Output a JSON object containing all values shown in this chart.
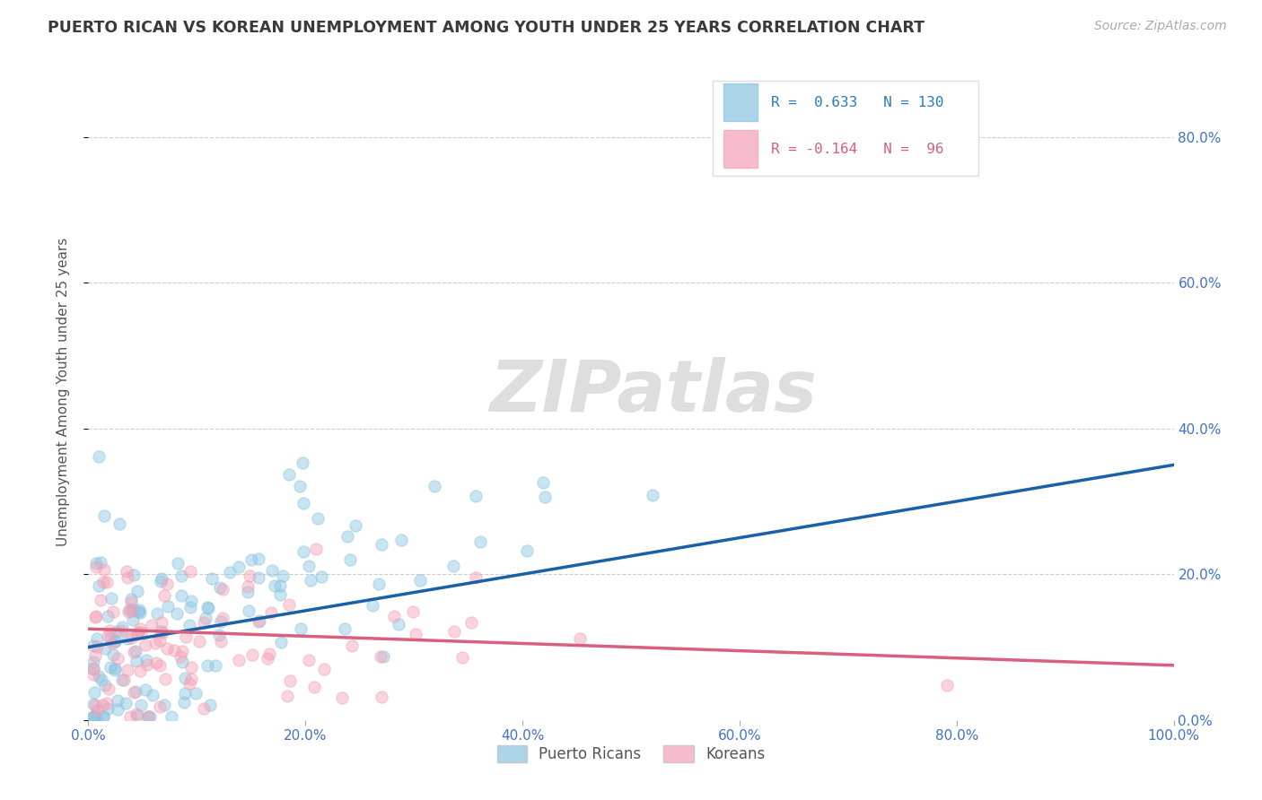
{
  "title": "PUERTO RICAN VS KOREAN UNEMPLOYMENT AMONG YOUTH UNDER 25 YEARS CORRELATION CHART",
  "source": "Source: ZipAtlas.com",
  "ylabel": "Unemployment Among Youth under 25 years",
  "xlim": [
    0.0,
    1.0
  ],
  "ylim": [
    0.0,
    0.9
  ],
  "pr_R": 0.633,
  "pr_N": 130,
  "ko_R": -0.164,
  "ko_N": 96,
  "pr_color": "#89c4e1",
  "ko_color": "#f4a0b5",
  "pr_line_color": "#1a5fa8",
  "ko_line_color": "#d95f7f",
  "legend_pr_color": "#2b7bba",
  "legend_ko_color": "#d95f7f",
  "title_color": "#3a3a3a",
  "source_color": "#aaaaaa",
  "axis_label_color": "#555555",
  "tick_color": "#4472c4",
  "grid_color": "#cccccc",
  "background_color": "#ffffff",
  "watermark_color": "#dedede",
  "pr_line_start_y": 0.1,
  "pr_line_end_y": 0.35,
  "ko_line_start_y": 0.125,
  "ko_line_end_y": 0.075
}
